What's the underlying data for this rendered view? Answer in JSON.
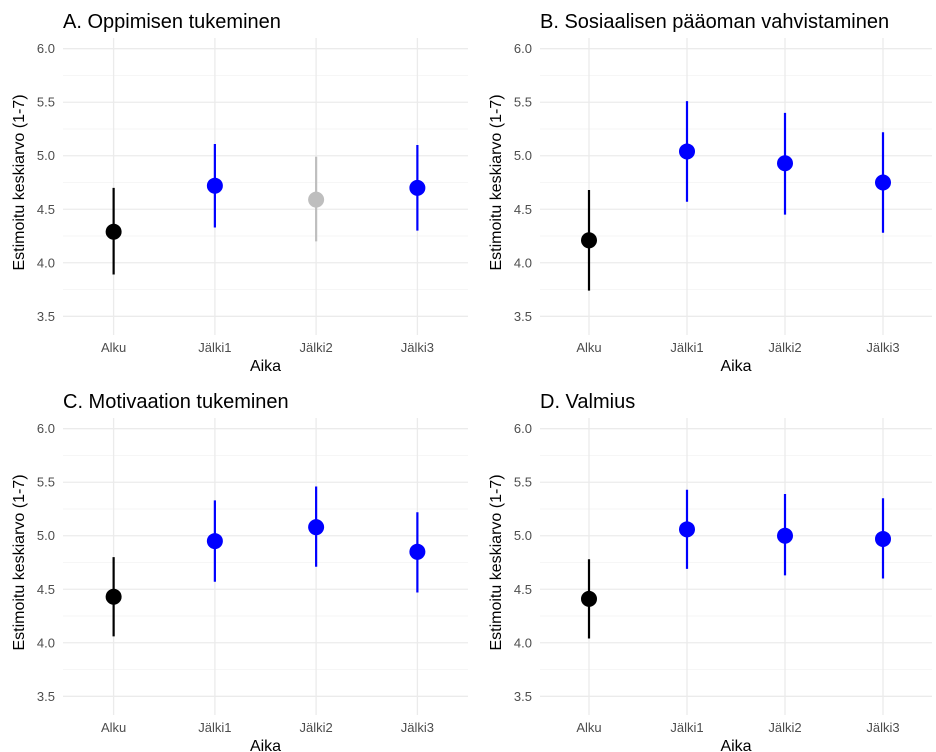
{
  "chart_data": [
    {
      "type": "scatter",
      "title": "A. Oppimisen tukeminen",
      "xlabel": "Aika",
      "ylabel": "Estimoitu keskiarvo (1-7)",
      "ylim": [
        3.4,
        6.1
      ],
      "yticks": [
        "3.5",
        "4.0",
        "4.5",
        "5.0",
        "5.5",
        "6.0"
      ],
      "categories": [
        "Alku",
        "Jälki1",
        "Jälki2",
        "Jälki3"
      ],
      "values": [
        4.29,
        4.72,
        4.59,
        4.7
      ],
      "lower": [
        3.89,
        4.33,
        4.2,
        4.3
      ],
      "upper": [
        4.7,
        5.11,
        4.99,
        5.1
      ],
      "colors": [
        "#000000",
        "#0000ff",
        "#bebebe",
        "#0000ff"
      ],
      "grid": true
    },
    {
      "type": "scatter",
      "title": "B. Sosiaalisen pääoman vahvistaminen",
      "xlabel": "Aika",
      "ylabel": "Estimoitu keskiarvo (1-7)",
      "ylim": [
        3.4,
        6.1
      ],
      "yticks": [
        "3.5",
        "4.0",
        "4.5",
        "5.0",
        "5.5",
        "6.0"
      ],
      "categories": [
        "Alku",
        "Jälki1",
        "Jälki2",
        "Jälki3"
      ],
      "values": [
        4.21,
        5.04,
        4.93,
        4.75
      ],
      "lower": [
        3.74,
        4.57,
        4.45,
        4.28
      ],
      "upper": [
        4.68,
        5.51,
        5.4,
        5.22
      ],
      "colors": [
        "#000000",
        "#0000ff",
        "#0000ff",
        "#0000ff"
      ],
      "grid": true
    },
    {
      "type": "scatter",
      "title": "C. Motivaation tukeminen",
      "xlabel": "Aika",
      "ylabel": "Estimoitu keskiarvo (1-7)",
      "ylim": [
        3.4,
        6.1
      ],
      "yticks": [
        "3.5",
        "4.0",
        "4.5",
        "5.0",
        "5.5",
        "6.0"
      ],
      "categories": [
        "Alku",
        "Jälki1",
        "Jälki2",
        "Jälki3"
      ],
      "values": [
        4.43,
        4.95,
        5.08,
        4.85
      ],
      "lower": [
        4.06,
        4.57,
        4.71,
        4.47
      ],
      "upper": [
        4.8,
        5.33,
        5.46,
        5.22
      ],
      "colors": [
        "#000000",
        "#0000ff",
        "#0000ff",
        "#0000ff"
      ],
      "grid": true
    },
    {
      "type": "scatter",
      "title": "D. Valmius",
      "xlabel": "Aika",
      "ylabel": "Estimoitu keskiarvo (1-7)",
      "ylim": [
        3.4,
        6.1
      ],
      "yticks": [
        "3.5",
        "4.0",
        "4.5",
        "5.0",
        "5.5",
        "6.0"
      ],
      "categories": [
        "Alku",
        "Jälki1",
        "Jälki2",
        "Jälki3"
      ],
      "values": [
        4.41,
        5.06,
        5.0,
        4.97
      ],
      "lower": [
        4.04,
        4.69,
        4.63,
        4.6
      ],
      "upper": [
        4.78,
        5.43,
        5.39,
        5.35
      ],
      "colors": [
        "#000000",
        "#0000ff",
        "#0000ff",
        "#0000ff"
      ],
      "grid": true
    }
  ]
}
